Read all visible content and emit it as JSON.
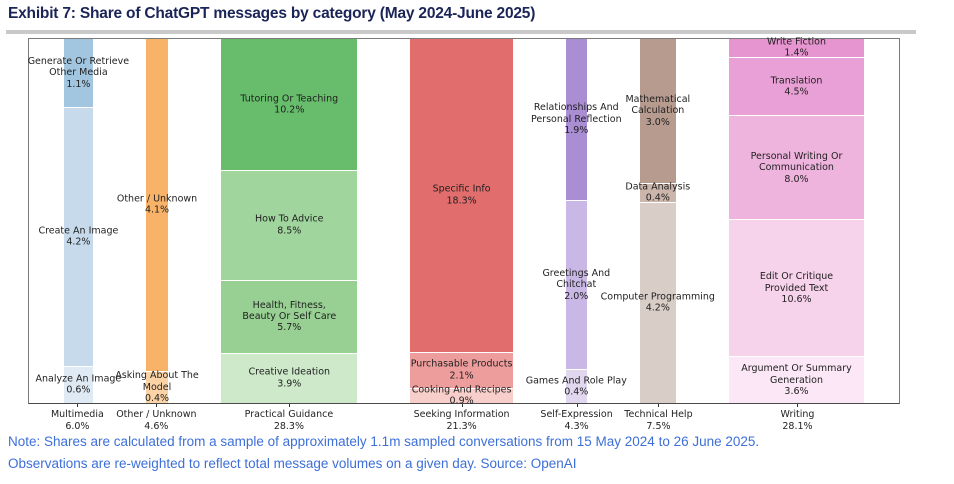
{
  "title": "Exhibit 7: Share of ChatGPT messages by category (May 2024-June 2025)",
  "note": {
    "line1": "Note: Shares are calculated from a sample of approximately 1.1m sampled conversations from 15 May 2024 to 26 June 2025.",
    "line2": "Observations are re-weighted to reflect total message volumes on a given day. Source: OpenAI"
  },
  "colors": {
    "title_text": "#1a2456",
    "note_text": "#3d6fd8",
    "divider": "#c9c9c9",
    "plot_border": "#7a7a7a",
    "label_text": "#1f1f1f"
  },
  "chart_data": {
    "type": "bar",
    "subtype": "variable-width 100% stacked columns (marimekko-style)",
    "title": "Exhibit 7: Share of ChatGPT messages by category (May 2024-June 2025)",
    "xlabel": "",
    "ylabel": "",
    "grid": false,
    "legend": "none",
    "bar_width_rule": "column width proportional to category total share",
    "categories": [
      {
        "label": "Multimedia",
        "total_label": "6.0%",
        "total_value": 6.0,
        "segments": [
          {
            "name": "Generate Or Retrieve\nOther Media",
            "pct": "1.1%",
            "value": 1.1,
            "color": "#a3c6e0"
          },
          {
            "name": "Create An Image",
            "pct": "4.2%",
            "value": 4.2,
            "color": "#c6daeb"
          },
          {
            "name": "Analyze An Image",
            "pct": "0.6%",
            "value": 0.6,
            "color": "#dfeaf4"
          }
        ]
      },
      {
        "label": "Other / Unknown",
        "total_label": "4.6%",
        "total_value": 4.6,
        "segments": [
          {
            "name": "Other / Unknown",
            "pct": "4.1%",
            "value": 4.1,
            "color": "#f8b369"
          },
          {
            "name": "Asking About The\nModel",
            "pct": "0.4%",
            "value": 0.4,
            "color": "#fbd3a4"
          }
        ]
      },
      {
        "label": "Practical Guidance",
        "total_label": "28.3%",
        "total_value": 28.3,
        "segments": [
          {
            "name": "Tutoring Or Teaching",
            "pct": "10.2%",
            "value": 10.2,
            "color": "#67bd6b"
          },
          {
            "name": "How To Advice",
            "pct": "8.5%",
            "value": 8.5,
            "color": "#a1d59e"
          },
          {
            "name": "Health, Fitness,\nBeauty Or Self Care",
            "pct": "5.7%",
            "value": 5.7,
            "color": "#98d094"
          },
          {
            "name": "Creative Ideation",
            "pct": "3.9%",
            "value": 3.9,
            "color": "#cde9c9"
          }
        ]
      },
      {
        "label": "Seeking Information",
        "total_label": "21.3%",
        "total_value": 21.3,
        "segments": [
          {
            "name": "Specific Info",
            "pct": "18.3%",
            "value": 18.3,
            "color": "#e26d6d"
          },
          {
            "name": "Purchasable Products",
            "pct": "2.1%",
            "value": 2.1,
            "color": "#ee9d9d"
          },
          {
            "name": "Cooking And Recipes",
            "pct": "0.9%",
            "value": 0.9,
            "color": "#f8cecb"
          }
        ]
      },
      {
        "label": "Self-Expression",
        "total_label": "4.3%",
        "total_value": 4.3,
        "segments": [
          {
            "name": "Relationships And\nPersonal Reflection",
            "pct": "1.9%",
            "value": 1.9,
            "color": "#aa8ed3"
          },
          {
            "name": "Greetings And\nChitchat",
            "pct": "2.0%",
            "value": 2.0,
            "color": "#c9b7e5"
          },
          {
            "name": "Games And Role Play",
            "pct": "0.4%",
            "value": 0.4,
            "color": "#e1d8f0"
          }
        ]
      },
      {
        "label": "Technical Help",
        "total_label": "7.5%",
        "total_value": 7.5,
        "segments": [
          {
            "name": "Mathematical\nCalculation",
            "pct": "3.0%",
            "value": 3.0,
            "color": "#b79b8f"
          },
          {
            "name": "Data Analysis",
            "pct": "0.4%",
            "value": 0.4,
            "color": "#ccb6ac"
          },
          {
            "name": "Computer Programming",
            "pct": "4.2%",
            "value": 4.2,
            "color": "#d9cdc7"
          }
        ]
      },
      {
        "label": "Writing",
        "total_label": "28.1%",
        "total_value": 28.1,
        "segments": [
          {
            "name": "Write Fiction",
            "pct": "1.4%",
            "value": 1.4,
            "color": "#e795d0"
          },
          {
            "name": "Translation",
            "pct": "4.5%",
            "value": 4.5,
            "color": "#e9a0d6"
          },
          {
            "name": "Personal Writing Or\nCommunication",
            "pct": "8.0%",
            "value": 8.0,
            "color": "#efb4de"
          },
          {
            "name": "Edit Or Critique\nProvided Text",
            "pct": "10.6%",
            "value": 10.6,
            "color": "#f7d2eb"
          },
          {
            "name": "Argument Or Summary\nGeneration",
            "pct": "3.6%",
            "value": 3.6,
            "color": "#fbe7f5"
          }
        ]
      }
    ]
  }
}
